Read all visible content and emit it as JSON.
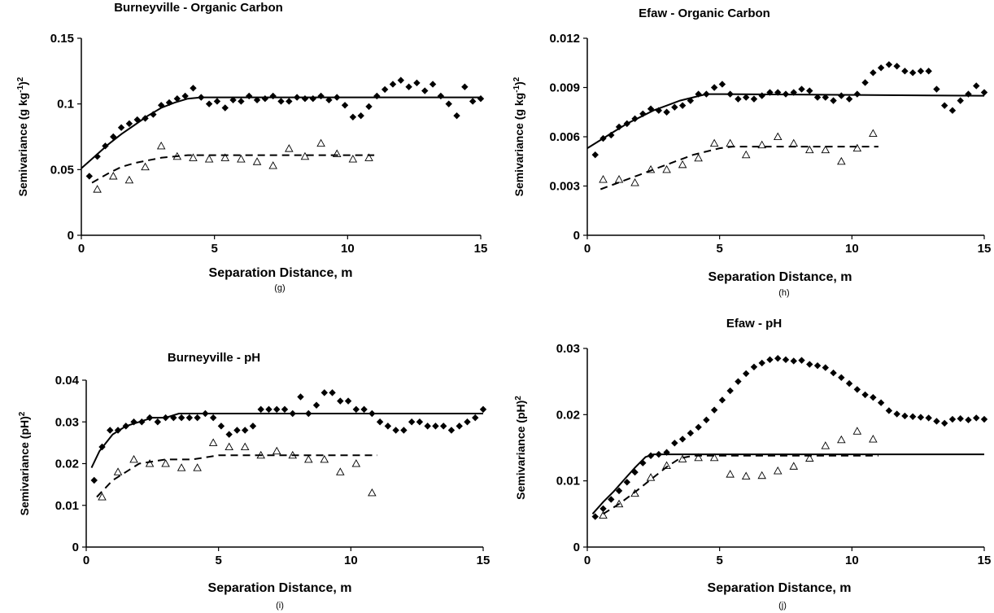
{
  "chart_data": [
    {
      "panel_label": "(g)",
      "type": "scatter",
      "title": "Burneyville - Organic Carbon",
      "xlabel": "Separation Distance, m",
      "ylabel_parts": [
        "Semivariance (g kg",
        "-1",
        ")",
        "2"
      ],
      "xlim": [
        0,
        15
      ],
      "ylim": [
        0,
        0.15
      ],
      "xticks": [
        0,
        5,
        10,
        15
      ],
      "yticks": [
        0,
        0.05,
        0.1,
        0.15
      ],
      "ytick_labels": [
        "0",
        "0.05",
        "0.1",
        "0.15"
      ],
      "series": [
        {
          "marker": "diamond",
          "color": "#000000",
          "x": [
            0.3,
            0.6,
            0.9,
            1.2,
            1.5,
            1.8,
            2.1,
            2.4,
            2.7,
            3.0,
            3.3,
            3.6,
            3.9,
            4.2,
            4.5,
            4.8,
            5.1,
            5.4,
            5.7,
            6.0,
            6.3,
            6.6,
            6.9,
            7.2,
            7.5,
            7.8,
            8.1,
            8.4,
            8.7,
            9.0,
            9.3,
            9.6,
            9.9,
            10.2,
            10.5,
            10.8,
            11.1,
            11.4,
            11.7,
            12.0,
            12.3,
            12.6,
            12.9,
            13.2,
            13.5,
            13.8,
            14.1,
            14.4,
            14.7,
            15.0
          ],
          "y": [
            0.045,
            0.06,
            0.068,
            0.075,
            0.082,
            0.085,
            0.088,
            0.089,
            0.092,
            0.099,
            0.101,
            0.104,
            0.106,
            0.112,
            0.105,
            0.1,
            0.102,
            0.097,
            0.103,
            0.102,
            0.106,
            0.103,
            0.104,
            0.106,
            0.102,
            0.102,
            0.105,
            0.104,
            0.104,
            0.106,
            0.103,
            0.105,
            0.099,
            0.09,
            0.091,
            0.098,
            0.106,
            0.111,
            0.115,
            0.118,
            0.113,
            0.116,
            0.11,
            0.115,
            0.106,
            0.1,
            0.091,
            0.113,
            0.102,
            0.104
          ]
        },
        {
          "marker": "triangle-open",
          "color": "#000000",
          "x": [
            0.6,
            1.2,
            1.8,
            2.4,
            3.0,
            3.6,
            4.2,
            4.8,
            5.4,
            6.0,
            6.6,
            7.2,
            7.8,
            8.4,
            9.0,
            9.6,
            10.2,
            10.8
          ],
          "y": [
            0.035,
            0.045,
            0.042,
            0.052,
            0.068,
            0.06,
            0.059,
            0.058,
            0.059,
            0.058,
            0.056,
            0.053,
            0.066,
            0.06,
            0.07,
            0.062,
            0.058,
            0.059
          ]
        }
      ],
      "fits": [
        {
          "style": "solid",
          "x": [
            0,
            0.5,
            1,
            1.5,
            2,
            2.5,
            3,
            3.5,
            4,
            4.5,
            5,
            15
          ],
          "y": [
            0.051,
            0.06,
            0.069,
            0.077,
            0.084,
            0.091,
            0.097,
            0.101,
            0.104,
            0.105,
            0.105,
            0.105
          ]
        },
        {
          "style": "dashed",
          "x": [
            0.4,
            1,
            1.5,
            2,
            2.5,
            3,
            3.5,
            4,
            11
          ],
          "y": [
            0.04,
            0.047,
            0.052,
            0.055,
            0.057,
            0.059,
            0.06,
            0.061,
            0.061
          ]
        }
      ]
    },
    {
      "panel_label": "(h)",
      "type": "scatter",
      "title": "Efaw - Organic Carbon",
      "xlabel": "Separation Distance, m",
      "ylabel_parts": [
        "Semivariance (g kg",
        "-1",
        ")",
        "2"
      ],
      "xlim": [
        0,
        15
      ],
      "ylim": [
        0,
        0.012
      ],
      "xticks": [
        0,
        5,
        10,
        15
      ],
      "yticks": [
        0,
        0.003,
        0.006,
        0.009,
        0.012
      ],
      "ytick_labels": [
        "0",
        "0.003",
        "0.006",
        "0.009",
        "0.012"
      ],
      "series": [
        {
          "marker": "diamond",
          "color": "#000000",
          "x": [
            0.3,
            0.6,
            0.9,
            1.2,
            1.5,
            1.8,
            2.1,
            2.4,
            2.7,
            3.0,
            3.3,
            3.6,
            3.9,
            4.2,
            4.5,
            4.8,
            5.1,
            5.4,
            5.7,
            6.0,
            6.3,
            6.6,
            6.9,
            7.2,
            7.5,
            7.8,
            8.1,
            8.4,
            8.7,
            9.0,
            9.3,
            9.6,
            9.9,
            10.2,
            10.5,
            10.8,
            11.1,
            11.4,
            11.7,
            12.0,
            12.3,
            12.6,
            12.9,
            13.2,
            13.5,
            13.8,
            14.1,
            14.4,
            14.7,
            15.0
          ],
          "y": [
            0.0049,
            0.0059,
            0.0061,
            0.0066,
            0.0068,
            0.0071,
            0.0074,
            0.0077,
            0.0076,
            0.0075,
            0.0078,
            0.0079,
            0.0082,
            0.0086,
            0.0086,
            0.009,
            0.0092,
            0.0086,
            0.0083,
            0.0084,
            0.0083,
            0.0085,
            0.0087,
            0.0087,
            0.0086,
            0.0087,
            0.0089,
            0.0088,
            0.0084,
            0.0084,
            0.0082,
            0.0085,
            0.0083,
            0.0086,
            0.0093,
            0.0099,
            0.0102,
            0.0104,
            0.0103,
            0.01,
            0.0099,
            0.01,
            0.01,
            0.0089,
            0.0079,
            0.0076,
            0.0082,
            0.0086,
            0.0091,
            0.0087
          ]
        },
        {
          "marker": "triangle-open",
          "color": "#000000",
          "x": [
            0.6,
            1.2,
            1.8,
            2.4,
            3.0,
            3.6,
            4.2,
            4.8,
            5.4,
            6.0,
            6.6,
            7.2,
            7.8,
            8.4,
            9.0,
            9.6,
            10.2,
            10.8
          ],
          "y": [
            0.0034,
            0.0034,
            0.0032,
            0.004,
            0.004,
            0.0043,
            0.0047,
            0.0056,
            0.0056,
            0.0049,
            0.0055,
            0.006,
            0.0056,
            0.0052,
            0.0052,
            0.0045,
            0.0053,
            0.0062
          ]
        }
      ],
      "fits": [
        {
          "style": "solid",
          "x": [
            0,
            0.5,
            1,
            1.5,
            2,
            2.5,
            3,
            3.5,
            4,
            4.5,
            5,
            15
          ],
          "y": [
            0.0053,
            0.0058,
            0.0063,
            0.0068,
            0.0072,
            0.0076,
            0.0079,
            0.0082,
            0.0084,
            0.0086,
            0.0086,
            0.0085
          ]
        },
        {
          "style": "dashed",
          "x": [
            0.5,
            1,
            1.5,
            2,
            2.5,
            3,
            3.5,
            4,
            4.5,
            5,
            5.5,
            11
          ],
          "y": [
            0.0028,
            0.0031,
            0.0034,
            0.0037,
            0.004,
            0.0043,
            0.0046,
            0.0049,
            0.0051,
            0.0053,
            0.0054,
            0.0054
          ]
        }
      ]
    },
    {
      "panel_label": "(i)",
      "type": "scatter",
      "title": "Burneyville - pH",
      "xlabel": "Separation Distance, m",
      "ylabel_parts": [
        "Semivariance (pH)",
        "2"
      ],
      "xlim": [
        0,
        15
      ],
      "ylim": [
        0,
        0.04
      ],
      "xticks": [
        0,
        5,
        10,
        15
      ],
      "yticks": [
        0,
        0.01,
        0.02,
        0.03,
        0.04
      ],
      "ytick_labels": [
        "0",
        "0.01",
        "0.02",
        "0.03",
        "0.04"
      ],
      "series": [
        {
          "marker": "diamond",
          "color": "#000000",
          "x": [
            0.3,
            0.6,
            0.9,
            1.2,
            1.5,
            1.8,
            2.1,
            2.4,
            2.7,
            3.0,
            3.3,
            3.6,
            3.9,
            4.2,
            4.5,
            4.8,
            5.1,
            5.4,
            5.7,
            6.0,
            6.3,
            6.6,
            6.9,
            7.2,
            7.5,
            7.8,
            8.1,
            8.4,
            8.7,
            9.0,
            9.3,
            9.6,
            9.9,
            10.2,
            10.5,
            10.8,
            11.1,
            11.4,
            11.7,
            12.0,
            12.3,
            12.6,
            12.9,
            13.2,
            13.5,
            13.8,
            14.1,
            14.4,
            14.7,
            15.0
          ],
          "y": [
            0.016,
            0.024,
            0.028,
            0.028,
            0.029,
            0.03,
            0.03,
            0.031,
            0.03,
            0.031,
            0.031,
            0.031,
            0.031,
            0.031,
            0.032,
            0.031,
            0.029,
            0.027,
            0.028,
            0.028,
            0.029,
            0.033,
            0.033,
            0.033,
            0.033,
            0.032,
            0.036,
            0.032,
            0.034,
            0.037,
            0.037,
            0.035,
            0.035,
            0.033,
            0.033,
            0.032,
            0.03,
            0.029,
            0.028,
            0.028,
            0.03,
            0.03,
            0.029,
            0.029,
            0.029,
            0.028,
            0.029,
            0.03,
            0.031,
            0.033
          ]
        },
        {
          "marker": "triangle-open",
          "color": "#000000",
          "x": [
            0.6,
            1.2,
            1.8,
            2.4,
            3.0,
            3.6,
            4.2,
            4.8,
            5.4,
            6.0,
            6.6,
            7.2,
            7.8,
            8.4,
            9.0,
            9.6,
            10.2,
            10.8
          ],
          "y": [
            0.012,
            0.018,
            0.021,
            0.02,
            0.02,
            0.019,
            0.019,
            0.025,
            0.024,
            0.024,
            0.022,
            0.023,
            0.022,
            0.021,
            0.021,
            0.018,
            0.02,
            0.013
          ]
        }
      ],
      "fits": [
        {
          "style": "solid",
          "x": [
            0.2,
            0.5,
            1,
            1.5,
            2,
            2.5,
            3,
            3.5,
            4,
            15
          ],
          "y": [
            0.019,
            0.023,
            0.027,
            0.029,
            0.03,
            0.031,
            0.031,
            0.032,
            0.032,
            0.032
          ]
        },
        {
          "style": "dashed",
          "x": [
            0.4,
            1,
            1.5,
            2,
            3,
            4,
            5,
            11
          ],
          "y": [
            0.012,
            0.016,
            0.018,
            0.02,
            0.021,
            0.021,
            0.022,
            0.022
          ]
        }
      ]
    },
    {
      "panel_label": "(j)",
      "type": "scatter",
      "title": "Efaw - pH",
      "xlabel": "Separation Distance, m",
      "ylabel_parts": [
        "Semivariance (pH)",
        "2"
      ],
      "xlim": [
        0,
        15
      ],
      "ylim": [
        0,
        0.03
      ],
      "xticks": [
        0,
        5,
        10,
        15
      ],
      "yticks": [
        0,
        0.01,
        0.02,
        0.03
      ],
      "ytick_labels": [
        "0",
        "0.01",
        "0.02",
        "0.03"
      ],
      "series": [
        {
          "marker": "diamond",
          "color": "#000000",
          "x": [
            0.3,
            0.6,
            0.9,
            1.2,
            1.5,
            1.8,
            2.1,
            2.4,
            2.7,
            3.0,
            3.3,
            3.6,
            3.9,
            4.2,
            4.5,
            4.8,
            5.1,
            5.4,
            5.7,
            6.0,
            6.3,
            6.6,
            6.9,
            7.2,
            7.5,
            7.8,
            8.1,
            8.4,
            8.7,
            9.0,
            9.3,
            9.6,
            9.9,
            10.2,
            10.5,
            10.8,
            11.1,
            11.4,
            11.7,
            12.0,
            12.3,
            12.6,
            12.9,
            13.2,
            13.5,
            13.8,
            14.1,
            14.4,
            14.7,
            15.0
          ],
          "y": [
            0.0046,
            0.0058,
            0.0072,
            0.0085,
            0.0098,
            0.0113,
            0.0127,
            0.0138,
            0.014,
            0.0143,
            0.0157,
            0.0163,
            0.0172,
            0.0181,
            0.0192,
            0.0207,
            0.0222,
            0.0236,
            0.025,
            0.0262,
            0.0272,
            0.0278,
            0.0283,
            0.0285,
            0.0283,
            0.0281,
            0.0282,
            0.0276,
            0.0274,
            0.0271,
            0.0263,
            0.0256,
            0.0247,
            0.0238,
            0.023,
            0.0226,
            0.0218,
            0.0206,
            0.0201,
            0.0198,
            0.0197,
            0.0196,
            0.0195,
            0.019,
            0.0187,
            0.0193,
            0.0194,
            0.0192,
            0.0195,
            0.0193
          ]
        },
        {
          "marker": "triangle-open",
          "color": "#000000",
          "x": [
            0.6,
            1.2,
            1.8,
            2.4,
            3.0,
            3.6,
            4.2,
            4.8,
            5.4,
            6.0,
            6.6,
            7.2,
            7.8,
            8.4,
            9.0,
            9.6,
            10.2,
            10.8
          ],
          "y": [
            0.0048,
            0.0065,
            0.0081,
            0.0105,
            0.0123,
            0.0133,
            0.0135,
            0.0135,
            0.011,
            0.0107,
            0.0108,
            0.0115,
            0.0122,
            0.0134,
            0.0153,
            0.0162,
            0.0175,
            0.0163
          ]
        }
      ],
      "fits": [
        {
          "style": "solid",
          "x": [
            0.2,
            0.6,
            1,
            1.4,
            1.8,
            2.2,
            2.5,
            15
          ],
          "y": [
            0.005,
            0.0068,
            0.0084,
            0.0102,
            0.012,
            0.0136,
            0.014,
            0.014
          ]
        },
        {
          "style": "dashed",
          "x": [
            0.6,
            1.2,
            1.8,
            2.4,
            3.0,
            3.5,
            4,
            11
          ],
          "y": [
            0.005,
            0.0065,
            0.0083,
            0.0102,
            0.0121,
            0.0134,
            0.0138,
            0.0138
          ]
        }
      ]
    }
  ]
}
